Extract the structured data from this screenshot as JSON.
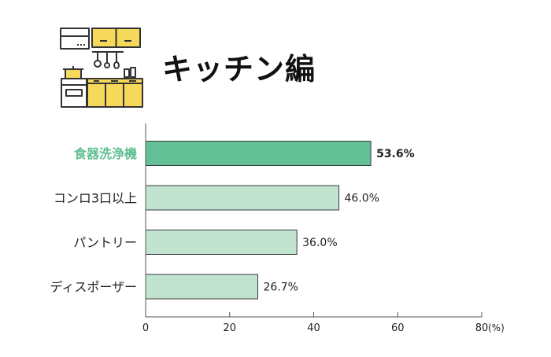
{
  "title": "キッチン編",
  "icon": "kitchen-icon",
  "colors": {
    "highlight_bar": "#63bf96",
    "highlight_label": "#5fbf92",
    "normal_bar": "#c1e4d0",
    "bar_stroke": "#3a3a3a",
    "axis": "#555555",
    "text": "#222222",
    "cabinet": "#f6d85a"
  },
  "chart_data": {
    "type": "bar",
    "orientation": "horizontal",
    "categories": [
      "食器洗浄機",
      "コンロ3口以上",
      "パントリー",
      "ディスポーザー"
    ],
    "values": [
      53.6,
      46.0,
      36.0,
      26.7
    ],
    "value_labels": [
      "53.6%",
      "46.0%",
      "36.0%",
      "26.7%"
    ],
    "highlight_index": 0,
    "xlim": [
      0,
      80
    ],
    "xticks": [
      "0",
      "20",
      "40",
      "60",
      "80"
    ],
    "xunit": "(%)",
    "grid": false
  }
}
